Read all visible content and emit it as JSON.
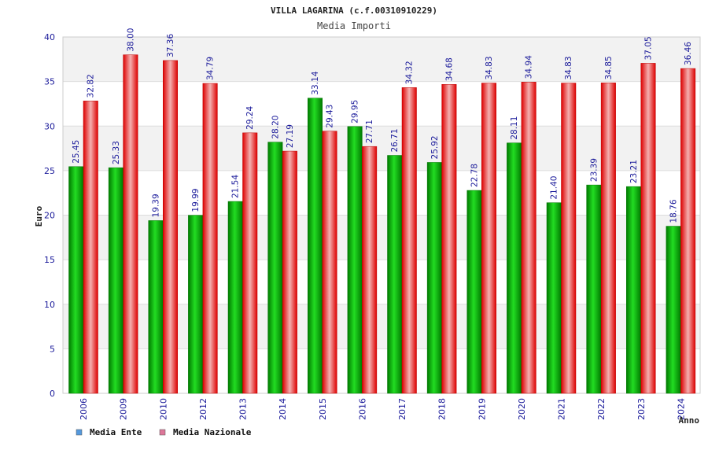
{
  "chart_data": {
    "type": "bar",
    "title": "VILLA LAGARINA (c.f.00310910229)",
    "subtitle": "Media Importi",
    "xlabel": "Anno",
    "ylabel": "Euro",
    "ylim": [
      0,
      40
    ],
    "yticks": [
      0,
      5,
      10,
      15,
      20,
      25,
      30,
      35,
      40
    ],
    "ytick_labels": [
      "0",
      "5",
      "10",
      "15",
      "20",
      "25",
      "30",
      "35",
      "40"
    ],
    "grid": true,
    "legend_position": "bottom-left",
    "categories": [
      "2006",
      "2009",
      "2010",
      "2012",
      "2013",
      "2014",
      "2015",
      "2016",
      "2017",
      "2018",
      "2019",
      "2020",
      "2021",
      "2022",
      "2023",
      "2024"
    ],
    "series": [
      {
        "name": "Media Ente",
        "values": [
          25.45,
          25.33,
          19.39,
          19.99,
          21.54,
          28.2,
          33.14,
          29.95,
          26.71,
          25.92,
          22.78,
          28.11,
          21.4,
          23.39,
          23.21,
          18.76
        ],
        "labels": [
          "25.45",
          "25.33",
          "19.39",
          "19.99",
          "21.54",
          "28.20",
          "33.14",
          "29.95",
          "26.71",
          "25.92",
          "22.78",
          "28.11",
          "21.40",
          "23.39",
          "23.21",
          "18.76"
        ],
        "color": "#00bb00",
        "legend_color": "#5599dd"
      },
      {
        "name": "Media Nazionale",
        "values": [
          32.82,
          38.0,
          37.36,
          34.79,
          29.24,
          27.19,
          29.43,
          27.71,
          34.32,
          34.68,
          34.83,
          34.94,
          34.83,
          34.85,
          37.05,
          36.46
        ],
        "labels": [
          "32.82",
          "38.00",
          "37.36",
          "34.79",
          "29.24",
          "27.19",
          "29.43",
          "27.71",
          "34.32",
          "34.68",
          "34.83",
          "34.94",
          "34.83",
          "34.85",
          "37.05",
          "36.46"
        ],
        "color": "#ee0000",
        "legend_color": "#dd7799"
      }
    ]
  }
}
